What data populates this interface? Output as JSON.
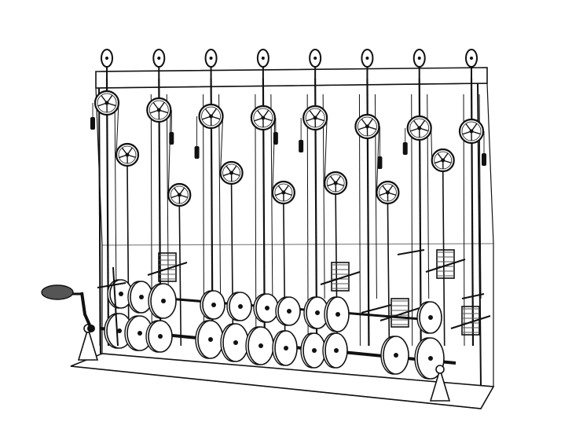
{
  "figure": {
    "pulley_column_count": 8,
    "crank_count": 1,
    "colors": {
      "background": "#ffffff",
      "ink": "#111111",
      "shade": "#555555"
    }
  }
}
